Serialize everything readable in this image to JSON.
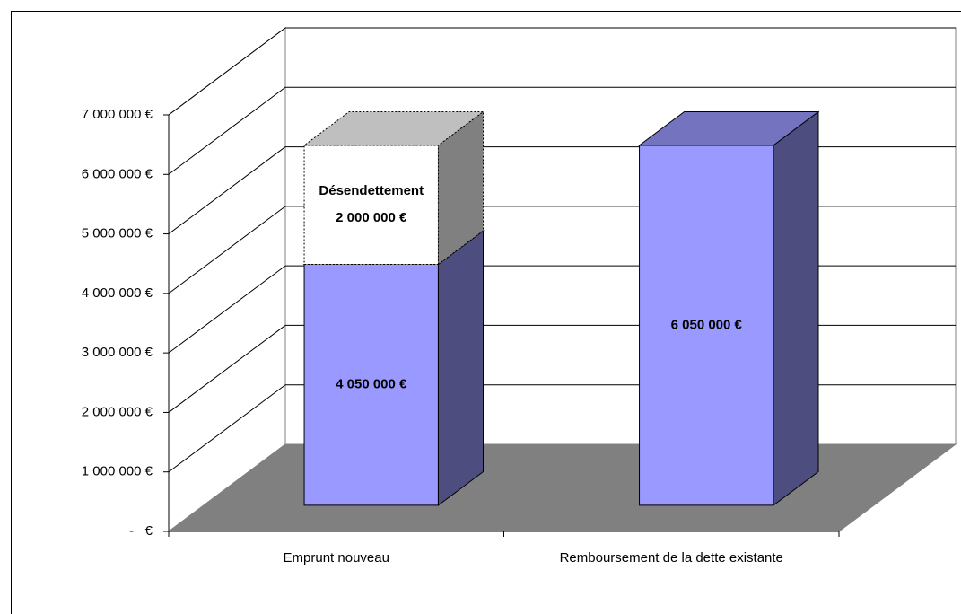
{
  "chart_data": {
    "type": "bar3d_stacked",
    "categories": [
      "Emprunt nouveau",
      "Remboursement de la dette existante"
    ],
    "series": [
      {
        "color": "#9999ff",
        "line_style": "solid",
        "values": [
          4050000,
          6050000
        ],
        "value_labels": [
          "4 050 000 €",
          "6 050 000 €"
        ]
      },
      {
        "name": "Désendettement",
        "color": "#ffffff",
        "line_style": "dotted",
        "values": [
          2000000,
          null
        ],
        "value_labels": [
          "2 000 000 €",
          null
        ]
      }
    ],
    "ylim": [
      0,
      7000000
    ],
    "yticks": [
      {
        "value": 0,
        "label": "-   €"
      },
      {
        "value": 1000000,
        "label": "1 000 000 €"
      },
      {
        "value": 2000000,
        "label": "2 000 000 €"
      },
      {
        "value": 3000000,
        "label": "3 000 000 €"
      },
      {
        "value": 4000000,
        "label": "4 000 000 €"
      },
      {
        "value": 5000000,
        "label": "5 000 000 €"
      },
      {
        "value": 6000000,
        "label": "6 000 000 €"
      },
      {
        "value": 7000000,
        "label": "7 000 000 €"
      }
    ],
    "grid": true,
    "legend": false,
    "floor_color": "#808080"
  }
}
